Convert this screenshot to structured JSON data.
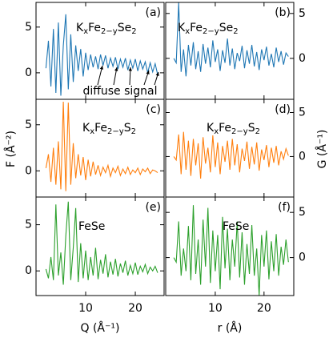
{
  "chart_data": [
    {
      "type": "line",
      "panel_label": "(a)",
      "title": [
        "K",
        "x",
        "Fe",
        "2−y",
        "Se",
        "2"
      ],
      "color": "#1f77b4",
      "x": [
        2,
        2.5,
        3,
        3.5,
        4,
        4.5,
        5,
        5.5,
        6,
        6.5,
        7,
        7.5,
        8,
        8.5,
        9,
        9.5,
        10,
        10.5,
        11,
        11.5,
        12,
        12.5,
        13,
        13.5,
        14,
        14.5,
        15,
        15.5,
        16,
        16.5,
        17,
        17.5,
        18,
        18.5,
        19,
        19.5,
        20,
        20.5,
        21,
        21.5,
        22,
        22.5,
        23,
        23.5,
        24,
        24.5
      ],
      "values": [
        0.5,
        3.5,
        -1.5,
        4.8,
        -2.2,
        5.5,
        -2.5,
        3.0,
        6.4,
        -1.8,
        4.2,
        -1.0,
        3.0,
        0.2,
        2.6,
        -0.4,
        2.2,
        0.3,
        2.0,
        0.6,
        1.8,
        0.4,
        2.0,
        0.8,
        1.9,
        0.5,
        1.6,
        0.7,
        1.7,
        0.4,
        1.5,
        0.6,
        1.6,
        0.3,
        1.4,
        0.5,
        1.5,
        0.2,
        1.3,
        0.4,
        1.2,
        0.0,
        1.1,
        0.1,
        1.0,
        -0.2
      ],
      "xlim": [
        0,
        25.8
      ],
      "ylim": [
        -2.9,
        7.7
      ],
      "xticks": [
        10,
        20
      ],
      "yticks": [
        0,
        5
      ],
      "annotation": "diffuse signal"
    },
    {
      "type": "line",
      "panel_label": "(b)",
      "title": [
        "K",
        "x",
        "Fe",
        "2−y",
        "Se",
        "2"
      ],
      "color": "#1f77b4",
      "x": [
        1.5,
        2,
        2.5,
        3,
        3.5,
        4,
        4.5,
        5,
        5.5,
        6,
        6.5,
        7,
        7.5,
        8,
        8.5,
        9,
        9.5,
        10,
        10.5,
        11,
        11.5,
        12,
        12.5,
        13,
        13.5,
        14,
        14.5,
        15,
        15.5,
        16,
        16.5,
        17,
        17.5,
        18,
        18.5,
        19,
        19.5,
        20,
        20.5,
        21,
        21.5,
        22,
        22.5,
        23,
        23.5,
        24,
        24.5,
        25
      ],
      "values": [
        0.0,
        -0.5,
        6.2,
        -1.5,
        1.0,
        -2.0,
        1.5,
        -0.8,
        1.8,
        -1.2,
        0.8,
        -1.5,
        1.6,
        -0.6,
        1.2,
        -1.0,
        2.0,
        -0.4,
        1.0,
        -1.4,
        0.9,
        -0.5,
        2.2,
        -0.8,
        1.1,
        -1.2,
        0.6,
        -0.3,
        1.4,
        -1.1,
        0.9,
        -0.6,
        1.5,
        -0.9,
        0.7,
        -1.3,
        1.0,
        -0.2,
        1.3,
        -0.8,
        0.5,
        -1.0,
        1.2,
        -0.4,
        0.8,
        -0.7,
        0.6,
        0.2
      ],
      "xlim": [
        -0.16,
        26.1
      ],
      "ylim": [
        -4.56,
        6.23
      ],
      "xticks": [
        10,
        20
      ],
      "yticks": [
        0,
        5
      ]
    },
    {
      "type": "line",
      "panel_label": "(c)",
      "title": [
        "K",
        "x",
        "Fe",
        "2−y",
        "S",
        "2"
      ],
      "color": "#ff7f0e",
      "x": [
        2,
        2.5,
        3,
        3.5,
        4,
        4.5,
        5,
        5.5,
        6,
        6.5,
        7,
        7.5,
        8,
        8.5,
        9,
        9.5,
        10,
        10.5,
        11,
        11.5,
        12,
        12.5,
        13,
        13.5,
        14,
        14.5,
        15,
        15.5,
        16,
        16.5,
        17,
        17.5,
        18,
        18.5,
        19,
        19.5,
        20,
        20.5,
        21,
        21.5,
        22,
        22.5,
        23,
        23.5,
        24,
        24.5
      ],
      "values": [
        0.3,
        1.8,
        -1.2,
        2.5,
        -1.5,
        3.2,
        -2.0,
        7.5,
        -2.2,
        7.4,
        -1.5,
        3.0,
        -0.8,
        1.8,
        -0.5,
        1.5,
        -1.0,
        1.2,
        -0.6,
        1.0,
        -0.4,
        0.6,
        -0.5,
        0.4,
        -0.2,
        0.6,
        -0.6,
        0.3,
        -0.2,
        0.5,
        -0.5,
        0.2,
        -0.3,
        0.4,
        -0.4,
        0.1,
        -0.2,
        0.3,
        -0.4,
        0.2,
        -0.1,
        0.3,
        -0.3,
        0.1,
        0.0,
        -0.2
      ],
      "xlim": [
        0,
        25.8
      ],
      "ylim": [
        -2.84,
        7.76
      ],
      "xticks": [
        10,
        20
      ],
      "yticks": [
        0,
        5
      ]
    },
    {
      "type": "line",
      "panel_label": "(d)",
      "title": [
        "K",
        "x",
        "Fe",
        "2−y",
        "S",
        "2"
      ],
      "color": "#ff7f0e",
      "x": [
        1.5,
        2,
        2.5,
        3,
        3.5,
        4,
        4.5,
        5,
        5.5,
        6,
        6.5,
        7,
        7.5,
        8,
        8.5,
        9,
        9.5,
        10,
        10.5,
        11,
        11.5,
        12,
        12.5,
        13,
        13.5,
        14,
        14.5,
        15,
        15.5,
        16,
        16.5,
        17,
        17.5,
        18,
        18.5,
        19,
        19.5,
        20,
        20.5,
        21,
        21.5,
        22,
        22.5,
        23,
        23.5,
        24,
        24.5,
        25
      ],
      "values": [
        0.0,
        -0.4,
        2.5,
        -2.0,
        2.8,
        -1.5,
        1.8,
        -2.2,
        2.0,
        -1.0,
        1.5,
        -2.5,
        2.2,
        -0.8,
        1.0,
        -1.8,
        2.4,
        -1.2,
        1.6,
        -2.0,
        1.2,
        -0.6,
        1.8,
        -1.5,
        2.0,
        -1.0,
        1.4,
        -1.8,
        0.9,
        -0.5,
        1.7,
        -1.4,
        1.1,
        -0.9,
        1.6,
        -1.6,
        0.8,
        -0.4,
        1.3,
        -1.2,
        1.0,
        -0.7,
        1.2,
        -1.0,
        0.6,
        -0.3,
        0.9,
        0.1
      ],
      "xlim": [
        -0.16,
        26.1
      ],
      "ylim": [
        -4.6,
        6.5
      ],
      "xticks": [
        10,
        20
      ],
      "yticks": [
        0,
        5
      ]
    },
    {
      "type": "line",
      "panel_label": "(e)",
      "title": [
        "FeSe"
      ],
      "color": "#2ca02c",
      "x": [
        2,
        2.5,
        3,
        3.5,
        4,
        4.5,
        5,
        5.5,
        6,
        6.5,
        7,
        7.5,
        8,
        8.5,
        9,
        9.5,
        10,
        10.5,
        11,
        11.5,
        12,
        12.5,
        13,
        13.5,
        14,
        14.5,
        15,
        15.5,
        16,
        16.5,
        17,
        17.5,
        18,
        18.5,
        19,
        19.5,
        20,
        20.5,
        21,
        21.5,
        22,
        22.5,
        23,
        23.5,
        24,
        24.5
      ],
      "values": [
        0.2,
        -0.8,
        1.5,
        -1.0,
        7.2,
        -0.5,
        2.0,
        -1.5,
        3.8,
        7.5,
        -1.0,
        2.5,
        6.8,
        -1.2,
        3.0,
        -0.8,
        2.2,
        -1.0,
        1.5,
        -0.5,
        2.5,
        -0.9,
        1.2,
        -0.3,
        1.8,
        -0.7,
        1.0,
        -0.4,
        1.3,
        -0.6,
        0.8,
        -0.2,
        1.1,
        -0.5,
        0.6,
        -0.3,
        0.9,
        -0.4,
        0.5,
        -0.1,
        0.7,
        -0.3,
        0.4,
        0.0,
        0.5,
        -0.2
      ],
      "xlim": [
        0,
        25.8
      ],
      "ylim": [
        -2.67,
        8.0
      ],
      "xticks": [
        10,
        20
      ],
      "yticks": [
        0,
        5
      ],
      "xtick_labels": true
    },
    {
      "type": "line",
      "panel_label": "(f)",
      "title": [
        "FeSe"
      ],
      "color": "#2ca02c",
      "x": [
        1.5,
        2,
        2.5,
        3,
        3.5,
        4,
        4.5,
        5,
        5.5,
        6,
        6.5,
        7,
        7.5,
        8,
        8.5,
        9,
        9.5,
        10,
        10.5,
        11,
        11.5,
        12,
        12.5,
        13,
        13.5,
        14,
        14.5,
        15,
        15.5,
        16,
        16.5,
        17,
        17.5,
        18,
        18.5,
        19,
        19.5,
        20,
        20.5,
        21,
        21.5,
        22,
        22.5,
        23,
        23.5,
        24,
        24.5,
        25
      ],
      "values": [
        0.0,
        -0.5,
        4.0,
        -2.0,
        1.0,
        -1.5,
        3.5,
        -2.5,
        5.8,
        -1.8,
        2.0,
        -3.0,
        4.2,
        -1.0,
        5.5,
        -2.8,
        3.0,
        -1.5,
        2.5,
        -3.5,
        4.5,
        -1.2,
        3.2,
        -2.5,
        2.0,
        -1.0,
        4.0,
        -2.2,
        2.8,
        -3.0,
        1.5,
        -1.8,
        3.6,
        -2.0,
        1.0,
        -4.2,
        2.5,
        -1.0,
        3.0,
        -2.4,
        1.8,
        -1.5,
        2.6,
        -2.0,
        1.2,
        -0.8,
        2.0,
        -0.5
      ],
      "xlim": [
        -0.16,
        26.1
      ],
      "ylim": [
        -4.2,
        6.7
      ],
      "xticks": [
        10,
        20
      ],
      "yticks": [
        0,
        5
      ],
      "xtick_labels": true
    }
  ],
  "axis_labels": {
    "bottom_left": "Q (Å⁻¹)",
    "bottom_right": "r (Å)",
    "left": "F (Å⁻²)",
    "right": "G (Å⁻¹)"
  }
}
